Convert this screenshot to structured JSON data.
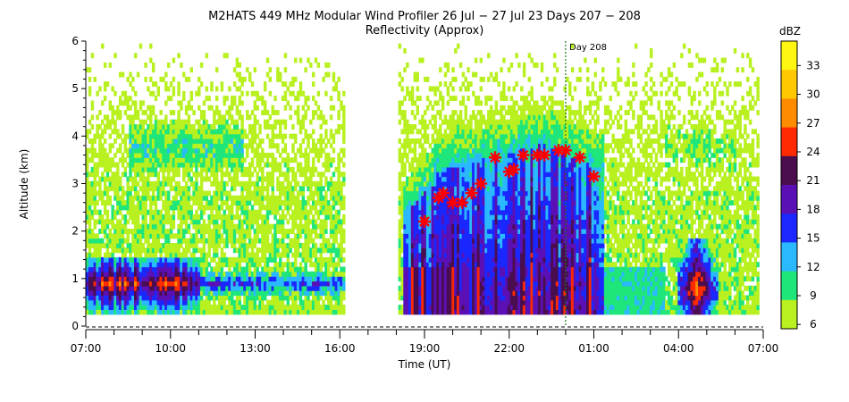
{
  "chart_data": {
    "type": "heatmap",
    "title": "M2HATS 449 MHz Modular Wind Profiler  26 Jul − 27 Jul 23 Days 207 − 208",
    "subtitle": "Reflectivity (Approx)",
    "xlabel": "Time (UT)",
    "ylabel": "Altitude (km)",
    "x_ticks": [
      "07:00",
      "10:00",
      "13:00",
      "16:00",
      "19:00",
      "22:00",
      "01:00",
      "04:00",
      "07:00"
    ],
    "x_range_hours_ut": [
      7,
      31
    ],
    "y_ticks": [
      "0",
      "1",
      "2",
      "3",
      "4",
      "5",
      "6"
    ],
    "ylim": [
      0,
      6
    ],
    "grid": false,
    "data_gap_hours_ut": [
      16.1,
      18.0
    ],
    "day_marker": {
      "label": "Day 208",
      "time": "00:00"
    },
    "colorbar": {
      "unit": "dBZ",
      "labels": [
        "33",
        "30",
        "27",
        "24",
        "21",
        "18",
        "15",
        "12",
        "9",
        "6"
      ],
      "colors": [
        "#fff712",
        "#ffc800",
        "#ff8c00",
        "#ff2a00",
        "#4a0e4e",
        "#5a10b4",
        "#1a28ff",
        "#2ab9ff",
        "#1ee67a",
        "#b8f020"
      ]
    },
    "series": [
      {
        "marker": "red-asterisk",
        "time": [
          "19:00",
          "19:30",
          "19:40",
          "20:00",
          "20:20",
          "20:40",
          "21:00",
          "21:30",
          "22:00",
          "22:10",
          "22:30",
          "23:00",
          "23:15",
          "23:45",
          "00:00",
          "00:30",
          "01:00"
        ],
        "altitude_km": [
          2.2,
          2.7,
          2.8,
          2.6,
          2.6,
          2.8,
          3.0,
          3.55,
          3.25,
          3.3,
          3.6,
          3.6,
          3.6,
          3.7,
          3.7,
          3.55,
          3.15
        ]
      }
    ]
  }
}
